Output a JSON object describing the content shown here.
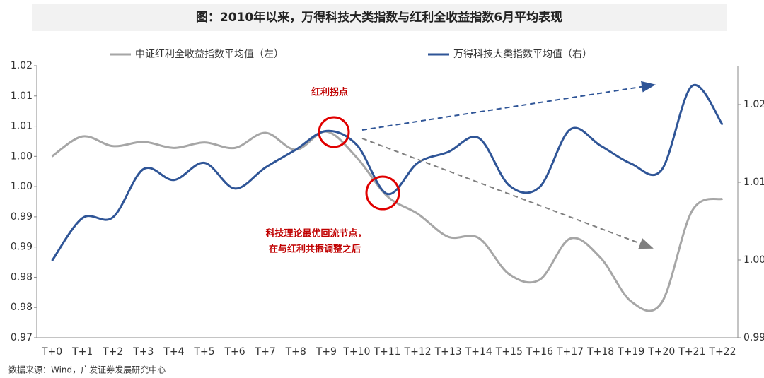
{
  "chart_data": {
    "type": "line",
    "title": "图：2010年以来，万得科技大类指数与红利全收益指数6月平均表现",
    "source": "数据来源：Wind，广发证券发展研究中心",
    "categories": [
      "T+0",
      "T+1",
      "T+2",
      "T+3",
      "T+4",
      "T+5",
      "T+6",
      "T+7",
      "T+8",
      "T+9",
      "T+10",
      "T+11",
      "T+12",
      "T+13",
      "T+14",
      "T+15",
      "T+16",
      "T+17",
      "T+18",
      "T+19",
      "T+20",
      "T+21",
      "T+22"
    ],
    "series": [
      {
        "name": "中证红利全收益指数平均值（左）",
        "color": "#a6a6a6",
        "values": [
          1.005,
          1.0083,
          1.0067,
          1.0074,
          1.0064,
          1.0073,
          1.0064,
          1.0089,
          1.0061,
          1.0091,
          1.0048,
          0.9984,
          0.9955,
          0.9917,
          0.9915,
          0.9855,
          0.9846,
          0.9914,
          0.9882,
          0.981,
          0.9808,
          0.996,
          0.998
        ]
      },
      {
        "name": "万得科技大类指数平均值（右）",
        "color": "#2f5597",
        "axis": "y2",
        "values": [
          0.9999,
          1.0054,
          1.0055,
          1.0117,
          1.0103,
          1.0125,
          1.0092,
          1.0119,
          1.0142,
          1.0166,
          1.0148,
          1.0085,
          1.0125,
          1.0139,
          1.0157,
          1.0096,
          1.0094,
          1.0168,
          1.0147,
          1.0124,
          1.0116,
          1.0224,
          1.0174
        ]
      }
    ],
    "ylim": [
      0.975,
      1.02
    ],
    "yticks": [
      {
        "value": 0.975,
        "label": "0.97"
      },
      0.98,
      {
        "value": 0.985,
        "label": "0.98"
      },
      0.99,
      {
        "value": 0.995,
        "label": "0.99"
      },
      {
        "value": 1,
        "label": "1.00"
      },
      {
        "value": 1.005,
        "label": "1.00"
      },
      1.01,
      {
        "value": 1.015,
        "label": "1.01"
      },
      1.02
    ],
    "y2lim": [
      0.99,
      1.025
    ],
    "y2ticks": [
      0.99,
      {
        "value": 1,
        "label": "1.00"
      },
      1.01,
      1.02
    ],
    "annotations": [
      "红利拐点",
      "科技理论最优回流节点，",
      "在与红利共振调整之后"
    ],
    "grid": false
  }
}
